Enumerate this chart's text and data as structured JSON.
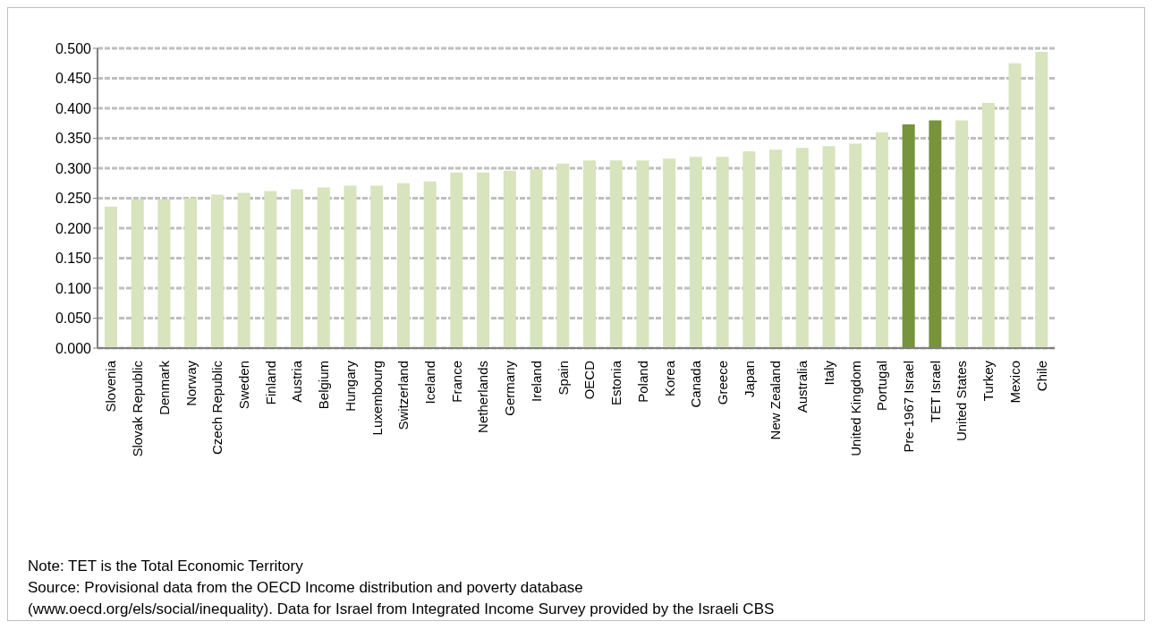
{
  "chart_data": {
    "type": "bar",
    "categories": [
      "Slovenia",
      "Slovak Republic",
      "Denmark",
      "Norway",
      "Czech Republic",
      "Sweden",
      "Finland",
      "Austria",
      "Belgium",
      "Hungary",
      "Luxembourg",
      "Switzerland",
      "Iceland",
      "France",
      "Netherlands",
      "Germany",
      "Ireland",
      "Spain",
      "OECD",
      "Estonia",
      "Poland",
      "Korea",
      "Canada",
      "Greece",
      "Japan",
      "New Zealand",
      "Australia",
      "Italy",
      "United Kingdom",
      "Portugal",
      "Pre-1967 Israel",
      "TET Israel",
      "United States",
      "Turkey",
      "Mexico",
      "Chile"
    ],
    "values": [
      0.236,
      0.248,
      0.248,
      0.25,
      0.256,
      0.259,
      0.262,
      0.265,
      0.268,
      0.271,
      0.271,
      0.275,
      0.278,
      0.293,
      0.293,
      0.296,
      0.298,
      0.308,
      0.313,
      0.313,
      0.313,
      0.316,
      0.319,
      0.319,
      0.328,
      0.331,
      0.334,
      0.337,
      0.341,
      0.36,
      0.373,
      0.38,
      0.38,
      0.409,
      0.475,
      0.494
    ],
    "colors": [
      "#d7e4bd",
      "#d7e4bd",
      "#d7e4bd",
      "#d7e4bd",
      "#d7e4bd",
      "#d7e4bd",
      "#d7e4bd",
      "#d7e4bd",
      "#d7e4bd",
      "#d7e4bd",
      "#d7e4bd",
      "#d7e4bd",
      "#d7e4bd",
      "#d7e4bd",
      "#d7e4bd",
      "#d7e4bd",
      "#d7e4bd",
      "#d7e4bd",
      "#d7e4bd",
      "#d7e4bd",
      "#d7e4bd",
      "#d7e4bd",
      "#d7e4bd",
      "#d7e4bd",
      "#d7e4bd",
      "#d7e4bd",
      "#d7e4bd",
      "#d7e4bd",
      "#d7e4bd",
      "#d7e4bd",
      "#77933c",
      "#77933c",
      "#d7e4bd",
      "#d7e4bd",
      "#d7e4bd",
      "#d7e4bd"
    ],
    "ylim": [
      0,
      0.5
    ],
    "yticks": [
      {
        "value": 0,
        "label": "0.000"
      },
      {
        "value": 0.05,
        "label": "0.050"
      },
      {
        "value": 0.1,
        "label": "0.100"
      },
      {
        "value": 0.15,
        "label": "0.150"
      },
      {
        "value": 0.2,
        "label": "0.200"
      },
      {
        "value": 0.25,
        "label": "0.250"
      },
      {
        "value": 0.3,
        "label": "0.300"
      },
      {
        "value": 0.35,
        "label": "0.350"
      },
      {
        "value": 0.4,
        "label": "0.400"
      },
      {
        "value": 0.45,
        "label": "0.450"
      },
      {
        "value": 0.5,
        "label": "0.500"
      }
    ],
    "grid": "y",
    "legend": false,
    "annotations": [
      "Note: TET is the Total Economic Territory",
      "Source: Provisional data from the OECD Income distribution and poverty database",
      "(www.oecd.org/els/social/inequality). Data for Israel from Integrated Income Survey provided by the Israeli CBS"
    ]
  }
}
